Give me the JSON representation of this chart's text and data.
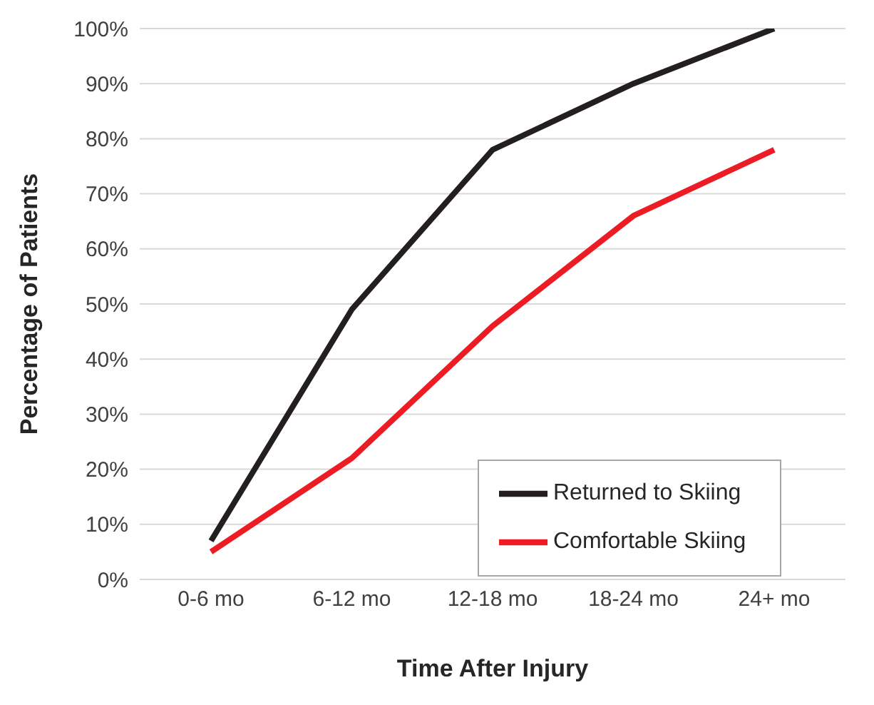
{
  "chart_data": {
    "type": "line",
    "xlabel": "Time After Injury",
    "ylabel": "Percentage of Patients",
    "categories": [
      "0-6 mo",
      "6-12 mo",
      "12-18 mo",
      "18-24 mo",
      "24+ mo"
    ],
    "series": [
      {
        "name": "Returned to Skiing",
        "color": "#231f20",
        "values": [
          7,
          49,
          78,
          90,
          100
        ]
      },
      {
        "name": "Comfortable Skiing",
        "color": "#ed1c24",
        "values": [
          5,
          22,
          46,
          66,
          78
        ]
      }
    ],
    "ylim": [
      0,
      100
    ],
    "yticks": [
      {
        "value": 0,
        "label": "0%"
      },
      {
        "value": 10,
        "label": "10%"
      },
      {
        "value": 20,
        "label": "20%"
      },
      {
        "value": 30,
        "label": "30%"
      },
      {
        "value": 40,
        "label": "40%"
      },
      {
        "value": 50,
        "label": "50%"
      },
      {
        "value": 60,
        "label": "60%"
      },
      {
        "value": 70,
        "label": "70%"
      },
      {
        "value": 80,
        "label": "80%"
      },
      {
        "value": 90,
        "label": "90%"
      },
      {
        "value": 100,
        "label": "100%"
      }
    ],
    "grid": "y",
    "legend": "bottom right",
    "marker": "none",
    "line_style": "solid"
  }
}
